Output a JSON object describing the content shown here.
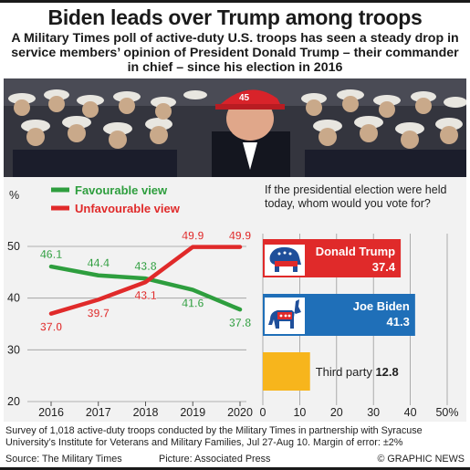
{
  "header": {
    "title": "Biden leads over Trump among troops",
    "subtitle": "A Military Times poll of active-duty U.S. troops has seen a steady drop in service members’ opinion of President Donald Trump – their commander in chief – since his election in 2016"
  },
  "chart_data": [
    {
      "type": "line",
      "ylabel": "%",
      "x": [
        "2016",
        "2017",
        "2018",
        "2019",
        "2020"
      ],
      "ylim": [
        20,
        50
      ],
      "yticks": [
        20,
        30,
        40,
        50
      ],
      "series": [
        {
          "name": "Favourable view",
          "color": "#2e9e3e",
          "values": [
            46.1,
            44.4,
            43.8,
            41.6,
            37.8
          ]
        },
        {
          "name": "Unfavourable view",
          "color": "#e02a2a",
          "values": [
            37.0,
            39.7,
            43.1,
            49.9,
            49.9
          ]
        }
      ],
      "legend": "top-left"
    },
    {
      "type": "bar",
      "question": "If the presidential election were held today, whom would you vote for?",
      "categories": [
        "Donald Trump",
        "Joe Biden",
        "Third party"
      ],
      "values": [
        37.4,
        41.3,
        12.8
      ],
      "colors": [
        "#e02a2a",
        "#1f6fb8",
        "#f7b51c"
      ],
      "xlim": [
        0,
        50
      ],
      "xticks": [
        "0",
        "10",
        "20",
        "30",
        "40",
        "50%"
      ]
    }
  ],
  "footnote": "Survey of 1,018 active-duty troops conducted by the Military Times in partnership with Syracuse University’s Institute for Veterans and Military Families, Jul 27-Aug 10. Margin of error: ±2%",
  "footer": {
    "source": "Source: The Military Times",
    "picture": "Picture: Associated Press",
    "copyright": "© GRAPHIC NEWS"
  },
  "photo": {
    "cap_text": "45"
  },
  "icons": [
    "republican-elephant-icon",
    "democrat-donkey-icon"
  ]
}
